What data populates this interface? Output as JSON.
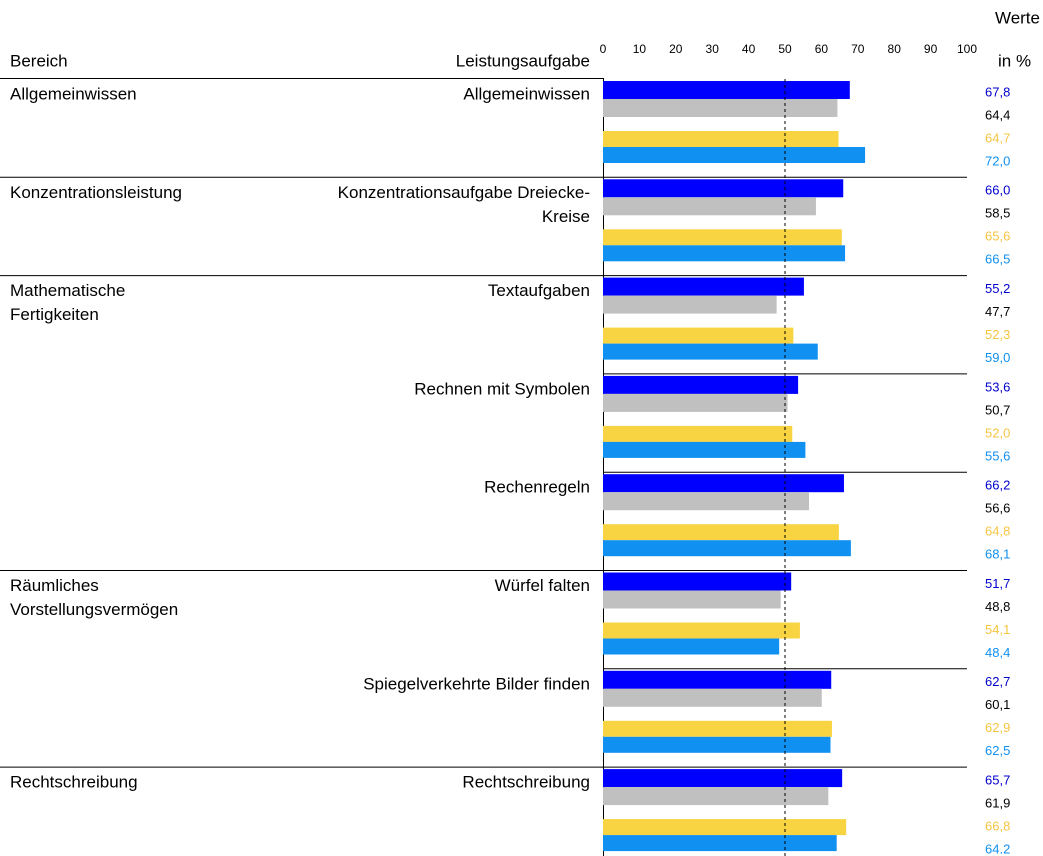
{
  "chart_data": {
    "type": "bar",
    "orientation": "horizontal",
    "headers": {
      "area": "Bereich",
      "task": "Leistungsaufgabe",
      "values_top": "Werte",
      "values_unit": "in %"
    },
    "groups": [
      {
        "label": [
          "Allgemeinwissen"
        ],
        "categories": [
          [
            "Allgemeinwissen"
          ]
        ]
      },
      {
        "label": [
          "Konzentrationsleistung"
        ],
        "categories": [
          [
            "Konzentrationsaufgabe Dreiecke-",
            "Kreise"
          ]
        ]
      },
      {
        "label": [
          "Mathematische",
          "Fertigkeiten"
        ],
        "categories": [
          [
            "Textaufgaben"
          ],
          [
            "Rechnen mit Symbolen"
          ],
          [
            "Rechenregeln"
          ]
        ]
      },
      {
        "label": [
          "Räumliches",
          "Vorstellungsvermögen"
        ],
        "categories": [
          [
            "Würfel falten"
          ],
          [
            "Spiegelverkehrte Bilder finden"
          ]
        ]
      },
      {
        "label": [
          "Rechtschreibung"
        ],
        "categories": [
          [
            "Rechtschreibung"
          ]
        ]
      }
    ],
    "series": [
      {
        "color": "#0000ff",
        "label_color": "#0000cc",
        "values": [
          67.8,
          66.0,
          55.2,
          53.6,
          66.2,
          51.7,
          62.7,
          65.7
        ],
        "value_labels": [
          "67,8",
          "66,0",
          "55,2",
          "53,6",
          "66,2",
          "51,7",
          "62,7",
          "65,7"
        ]
      },
      {
        "color": "#c0c0c0",
        "label_color": "#000000",
        "values": [
          64.4,
          58.5,
          47.7,
          50.7,
          56.6,
          48.8,
          60.1,
          61.9
        ],
        "value_labels": [
          "64,4",
          "58,5",
          "47,7",
          "50,7",
          "56,6",
          "48,8",
          "60,1",
          "61,9"
        ]
      },
      {
        "color": "#f9d442",
        "label_color": "#f5c542",
        "values": [
          64.7,
          65.6,
          52.3,
          52.0,
          64.8,
          54.1,
          62.9,
          66.8
        ],
        "value_labels": [
          "64,7",
          "65,6",
          "52,3",
          "52,0",
          "64,8",
          "54,1",
          "62,9",
          "66,8"
        ]
      },
      {
        "color": "#1090f0",
        "label_color": "#1090f0",
        "values": [
          72.0,
          66.5,
          59.0,
          55.6,
          68.1,
          48.4,
          62.5,
          64.2
        ],
        "value_labels": [
          "72,0",
          "66,5",
          "59,0",
          "55,6",
          "68,1",
          "48,4",
          "62,5",
          "64.2"
        ]
      }
    ],
    "xlim": [
      0,
      100
    ],
    "xticks": [
      0,
      10,
      20,
      30,
      40,
      50,
      60,
      70,
      80,
      90,
      100
    ],
    "reference_line": 50
  }
}
